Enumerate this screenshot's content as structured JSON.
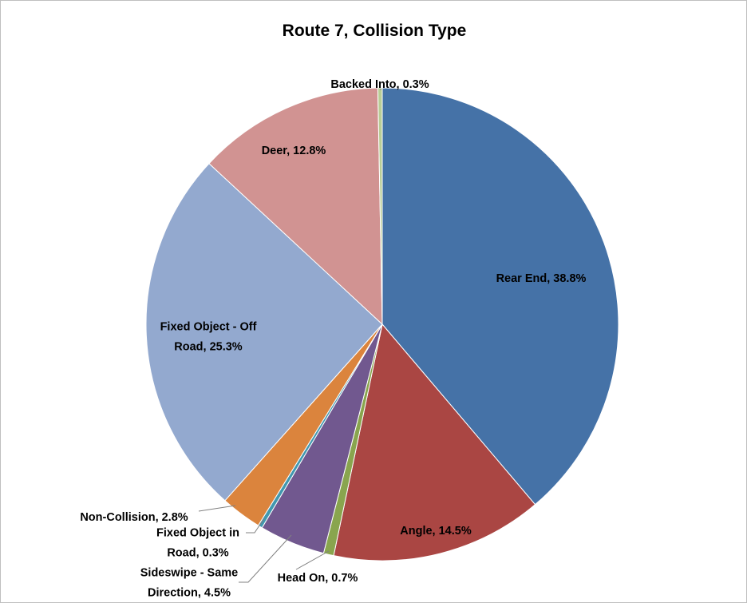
{
  "chart_data": {
    "type": "pie",
    "title": "Route 7, Collision Type",
    "legend": "none",
    "slices": [
      {
        "label_lines": [
          "Rear End, 38.8%"
        ],
        "category": "Rear End",
        "percent": 38.8,
        "color": "#4572a7"
      },
      {
        "label_lines": [
          "Angle, 14.5%"
        ],
        "category": "Angle",
        "percent": 14.5,
        "color": "#aa4643"
      },
      {
        "label_lines": [
          "Head On, 0.7%"
        ],
        "category": "Head On",
        "percent": 0.7,
        "color": "#89a54e"
      },
      {
        "label_lines": [
          "Sideswipe - Same",
          "Direction, 4.5%"
        ],
        "category": "Sideswipe - Same Direction",
        "percent": 4.5,
        "color": "#71588f"
      },
      {
        "label_lines": [
          "Fixed Object in",
          "Road, 0.3%"
        ],
        "category": "Fixed Object in Road",
        "percent": 0.3,
        "color": "#4198af"
      },
      {
        "label_lines": [
          "Non-Collision, 2.8%"
        ],
        "category": "Non-Collision",
        "percent": 2.8,
        "color": "#db843d"
      },
      {
        "label_lines": [
          "Fixed Object - Off",
          "Road, 25.3%"
        ],
        "category": "Fixed Object - Off Road",
        "percent": 25.3,
        "color": "#93a9cf"
      },
      {
        "label_lines": [
          "Deer, 12.8%"
        ],
        "category": "Deer",
        "percent": 12.8,
        "color": "#d19392"
      },
      {
        "label_lines": [
          "Backed Into, 0.3%"
        ],
        "category": "Backed Into",
        "percent": 0.3,
        "color": "#b9cd96"
      }
    ]
  }
}
